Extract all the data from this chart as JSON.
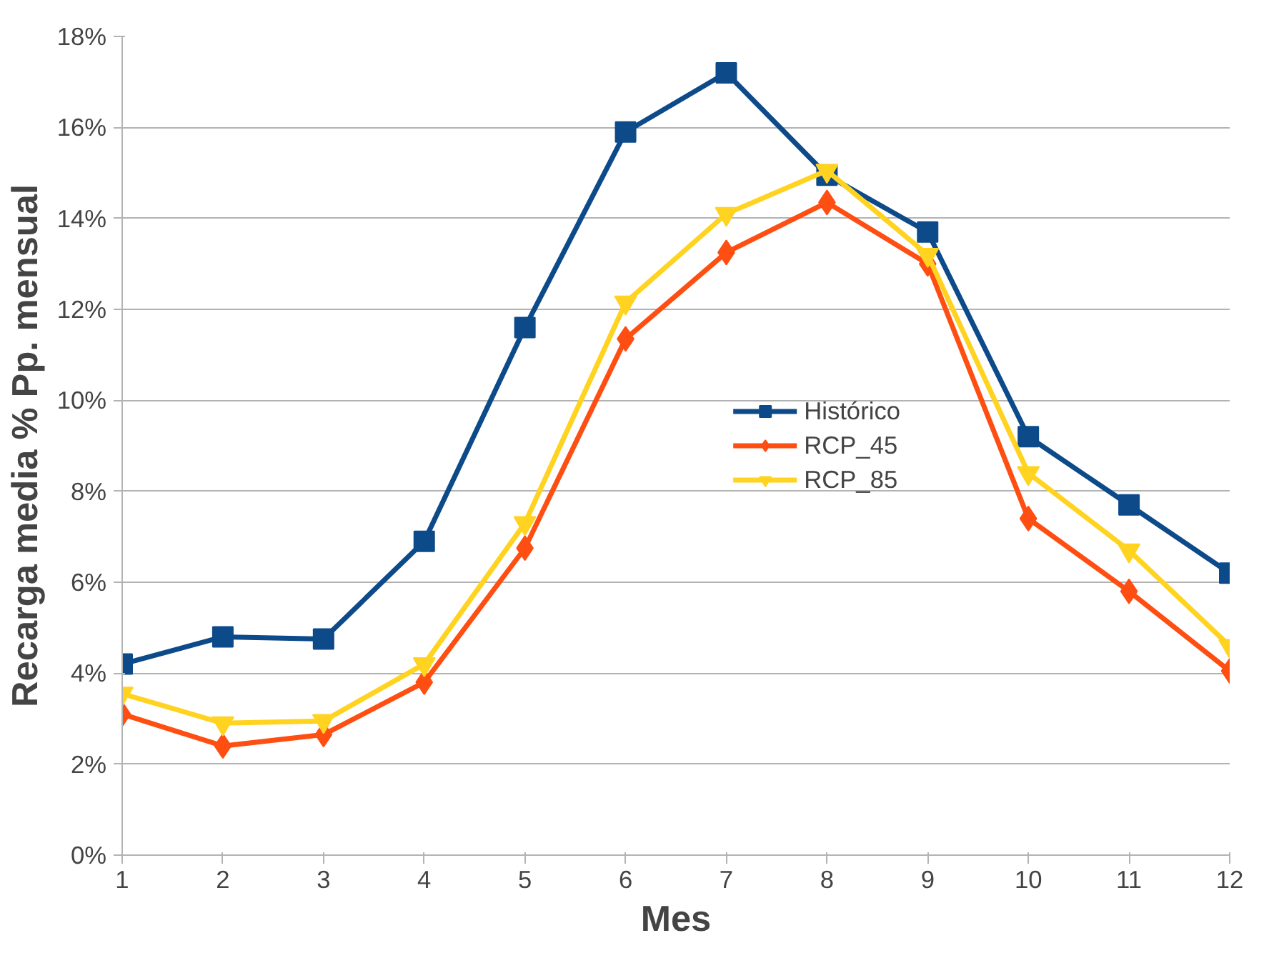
{
  "chart_data": {
    "type": "line",
    "xlabel": "Mes",
    "ylabel": "Recarga media % Pp. mensual",
    "x": [
      1,
      2,
      3,
      4,
      5,
      6,
      7,
      8,
      9,
      10,
      11,
      12
    ],
    "series": [
      {
        "name": "Histórico",
        "color": "#0d4a8a",
        "marker": "square",
        "values": [
          4.2,
          4.8,
          4.75,
          6.9,
          11.6,
          15.9,
          17.2,
          14.95,
          13.7,
          9.2,
          7.7,
          6.2
        ]
      },
      {
        "name": "RCP_45",
        "color": "#ff4e12",
        "marker": "diamond",
        "values": [
          3.1,
          2.4,
          2.65,
          3.8,
          6.75,
          11.35,
          13.25,
          14.35,
          13.0,
          7.4,
          5.8,
          4.05
        ]
      },
      {
        "name": "RCP_85",
        "color": "#ffd320",
        "marker": "triangle",
        "values": [
          3.55,
          2.9,
          2.95,
          4.2,
          7.3,
          12.15,
          14.1,
          15.05,
          13.2,
          8.4,
          6.7,
          4.6
        ]
      }
    ],
    "xlim": [
      1,
      12
    ],
    "xticks": [
      1,
      2,
      3,
      4,
      5,
      6,
      7,
      8,
      9,
      10,
      11,
      12
    ],
    "ylim": [
      0,
      18
    ],
    "yticks": [
      {
        "value": 0,
        "label": "0%"
      },
      {
        "value": 2,
        "label": "2%"
      },
      {
        "value": 4,
        "label": "4%"
      },
      {
        "value": 6,
        "label": "6%"
      },
      {
        "value": 8,
        "label": "8%"
      },
      {
        "value": 10,
        "label": "10%"
      },
      {
        "value": 12,
        "label": "12%"
      },
      {
        "value": 14,
        "label": "14%"
      },
      {
        "value": 16,
        "label": "16%"
      },
      {
        "value": 18,
        "label": "18%"
      }
    ],
    "grid": "y",
    "legend": "right",
    "line_style": "solid"
  }
}
